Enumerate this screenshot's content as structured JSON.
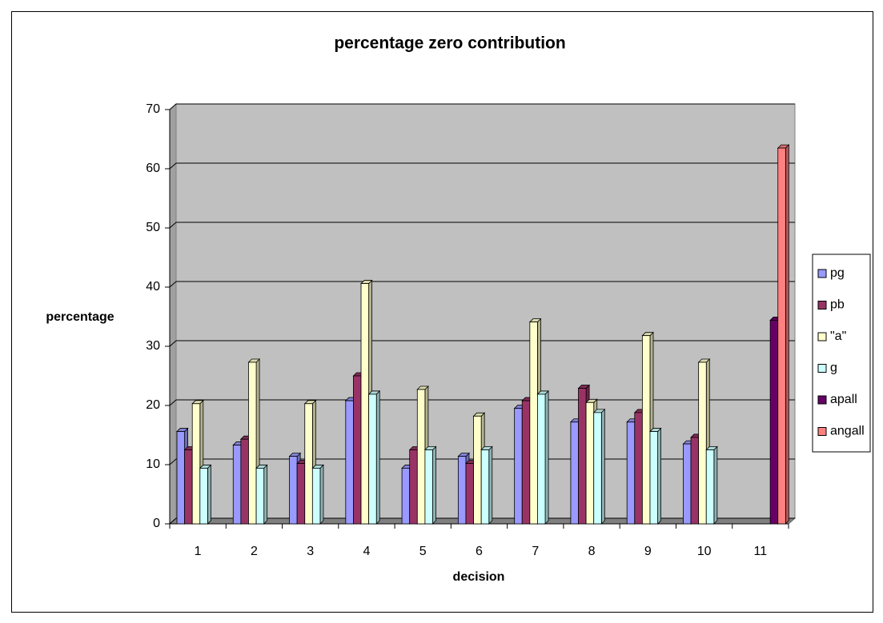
{
  "chart_data": {
    "type": "bar",
    "title": "percentage zero contribution",
    "x_label": "decision",
    "y_label": "percentage",
    "categories": [
      "1",
      "2",
      "3",
      "4",
      "5",
      "6",
      "7",
      "8",
      "9",
      "10",
      "11"
    ],
    "series": [
      {
        "name": "pg",
        "color": "#9999ff",
        "values": [
          15.6,
          13.3,
          11.4,
          20.8,
          9.4,
          11.4,
          19.5,
          17.2,
          17.2,
          13.5,
          null
        ]
      },
      {
        "name": "pb",
        "color": "#993366",
        "values": [
          12.5,
          14.3,
          10.2,
          25.0,
          12.5,
          10.2,
          20.8,
          22.9,
          18.8,
          14.6,
          null
        ]
      },
      {
        "name": "\"a\"",
        "color": "#ffffcc",
        "values": [
          20.3,
          27.3,
          20.3,
          40.6,
          22.7,
          18.2,
          34.1,
          20.5,
          31.8,
          27.3,
          null
        ]
      },
      {
        "name": "g",
        "color": "#ccffff",
        "values": [
          9.4,
          9.4,
          9.4,
          21.9,
          12.5,
          12.5,
          21.9,
          18.8,
          15.6,
          12.5,
          null
        ]
      },
      {
        "name": "apall",
        "color": "#660066",
        "values": [
          null,
          null,
          null,
          null,
          null,
          null,
          null,
          null,
          null,
          null,
          34.4
        ]
      },
      {
        "name": "angall",
        "color": "#ff8080",
        "values": [
          null,
          null,
          null,
          null,
          null,
          null,
          null,
          null,
          null,
          null,
          63.5
        ]
      }
    ],
    "ylim": [
      0,
      70
    ],
    "yticks": [
      0,
      10,
      20,
      30,
      40,
      50,
      60,
      70
    ],
    "grid": true,
    "legend": "right"
  }
}
